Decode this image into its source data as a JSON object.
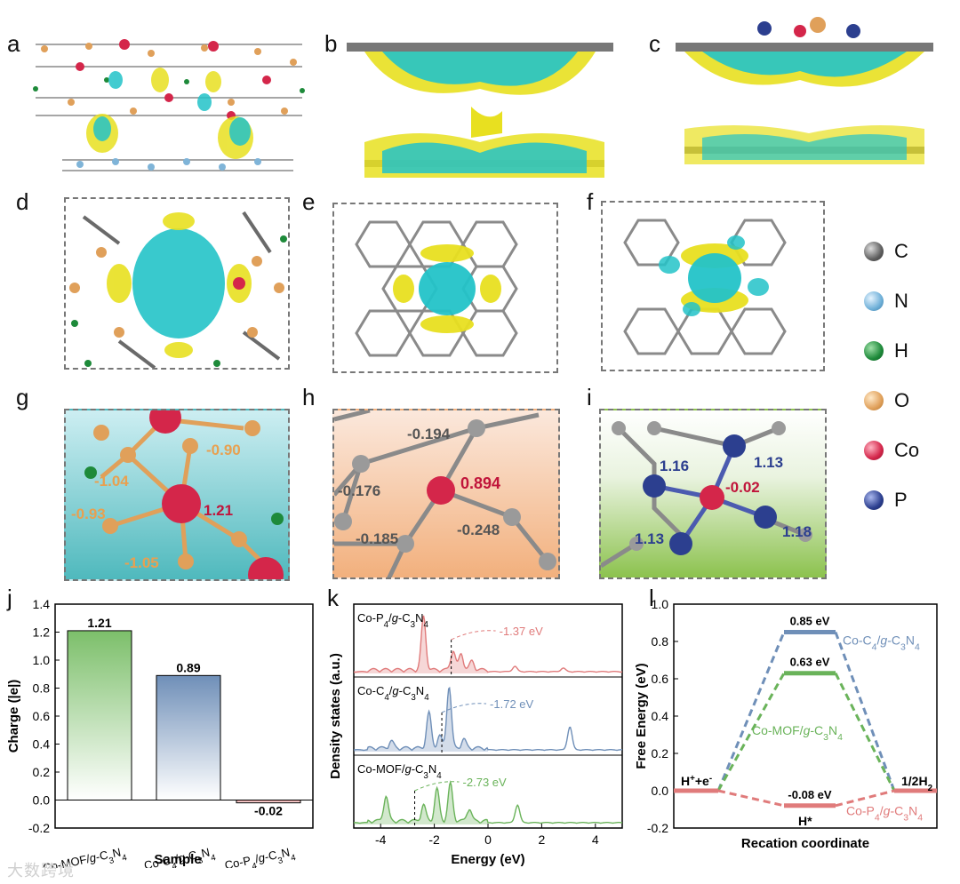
{
  "panel_labels": {
    "a": "a",
    "b": "b",
    "c": "c",
    "d": "d",
    "e": "e",
    "f": "f",
    "g": "g",
    "h": "h",
    "i": "i",
    "j": "j",
    "k": "k",
    "l": "l"
  },
  "legend": [
    {
      "label": "C",
      "color": "#5f5f5f"
    },
    {
      "label": "N",
      "color": "#6fb0d8"
    },
    {
      "label": "H",
      "color": "#1e8a3a"
    },
    {
      "label": "O",
      "color": "#e0a05a"
    },
    {
      "label": "Co",
      "color": "#d4264a"
    },
    {
      "label": "P",
      "color": "#2c3f8f"
    }
  ],
  "panel_g": {
    "charges": [
      "-0.90",
      "-1.04",
      "1.21",
      "-0.93",
      "-1.05"
    ]
  },
  "panel_h": {
    "charges": [
      "-0.194",
      "-0.176",
      "0.894",
      "-0.185",
      "-0.248"
    ]
  },
  "panel_i": {
    "charges": [
      "1.16",
      "1.13",
      "-0.02",
      "1.13",
      "1.18"
    ]
  },
  "chart_data": [
    {
      "type": "bar",
      "panel": "j",
      "categories": [
        "Co-MOF/g-C3N4",
        "Co-C4/g-C3N4",
        "Co-P4/g-C3N4"
      ],
      "values": [
        1.21,
        0.89,
        -0.02
      ],
      "data_labels": [
        "1.21",
        "0.89",
        "-0.02"
      ],
      "xlabel": "Sample",
      "ylabel": "Charge (|e|)",
      "ylim": [
        -0.2,
        1.4
      ],
      "yticks": [
        "-0.2",
        "0.0",
        "0.2",
        "0.4",
        "0.6",
        "0.8",
        "1.0",
        "1.2",
        "1.4"
      ],
      "colors": [
        "#7cbf6a",
        "#6f8fb8",
        "#e07b7b"
      ]
    },
    {
      "type": "line",
      "panel": "k",
      "xlabel": "Energy (eV)",
      "ylabel": "Density states (a.u.)",
      "xlim": [
        -5,
        5
      ],
      "xticks": [
        "-4",
        "-2",
        "0",
        "2",
        "4"
      ],
      "series": [
        {
          "name": "Co-P4/g-C3N4",
          "color": "#e07b7b",
          "center_label": "-1.37 eV",
          "center": -1.37
        },
        {
          "name": "Co-C4/g-C3N4",
          "color": "#6f8fb8",
          "center_label": "-1.72 eV",
          "center": -1.72
        },
        {
          "name": "Co-MOF/g-C3N4",
          "color": "#6ab35a",
          "center_label": "-2.73 eV",
          "center": -2.73
        }
      ]
    },
    {
      "type": "line",
      "panel": "l",
      "xlabel": "Recation coordinate",
      "ylabel": "Free Energy (eV)",
      "ylim": [
        -0.2,
        1.0
      ],
      "yticks": [
        "-0.2",
        "0.0",
        "0.2",
        "0.4",
        "0.6",
        "0.8",
        "1.0"
      ],
      "states": [
        "H+ + e-",
        "H*",
        "1/2H2"
      ],
      "series": [
        {
          "name": "Co-C4/g-C3N4",
          "color": "#6f8fb8",
          "values": [
            0.0,
            0.85,
            0.0
          ],
          "label": "0.85 eV"
        },
        {
          "name": "Co-MOF/g-C3N4",
          "color": "#6ab35a",
          "values": [
            0.0,
            0.63,
            0.0
          ],
          "label": "0.63 eV"
        },
        {
          "name": "Co-P4/g-C3N4",
          "color": "#e07b7b",
          "values": [
            0.0,
            -0.08,
            0.0
          ],
          "label": "-0.08 eV"
        }
      ]
    }
  ],
  "watermark": "大数跨境"
}
